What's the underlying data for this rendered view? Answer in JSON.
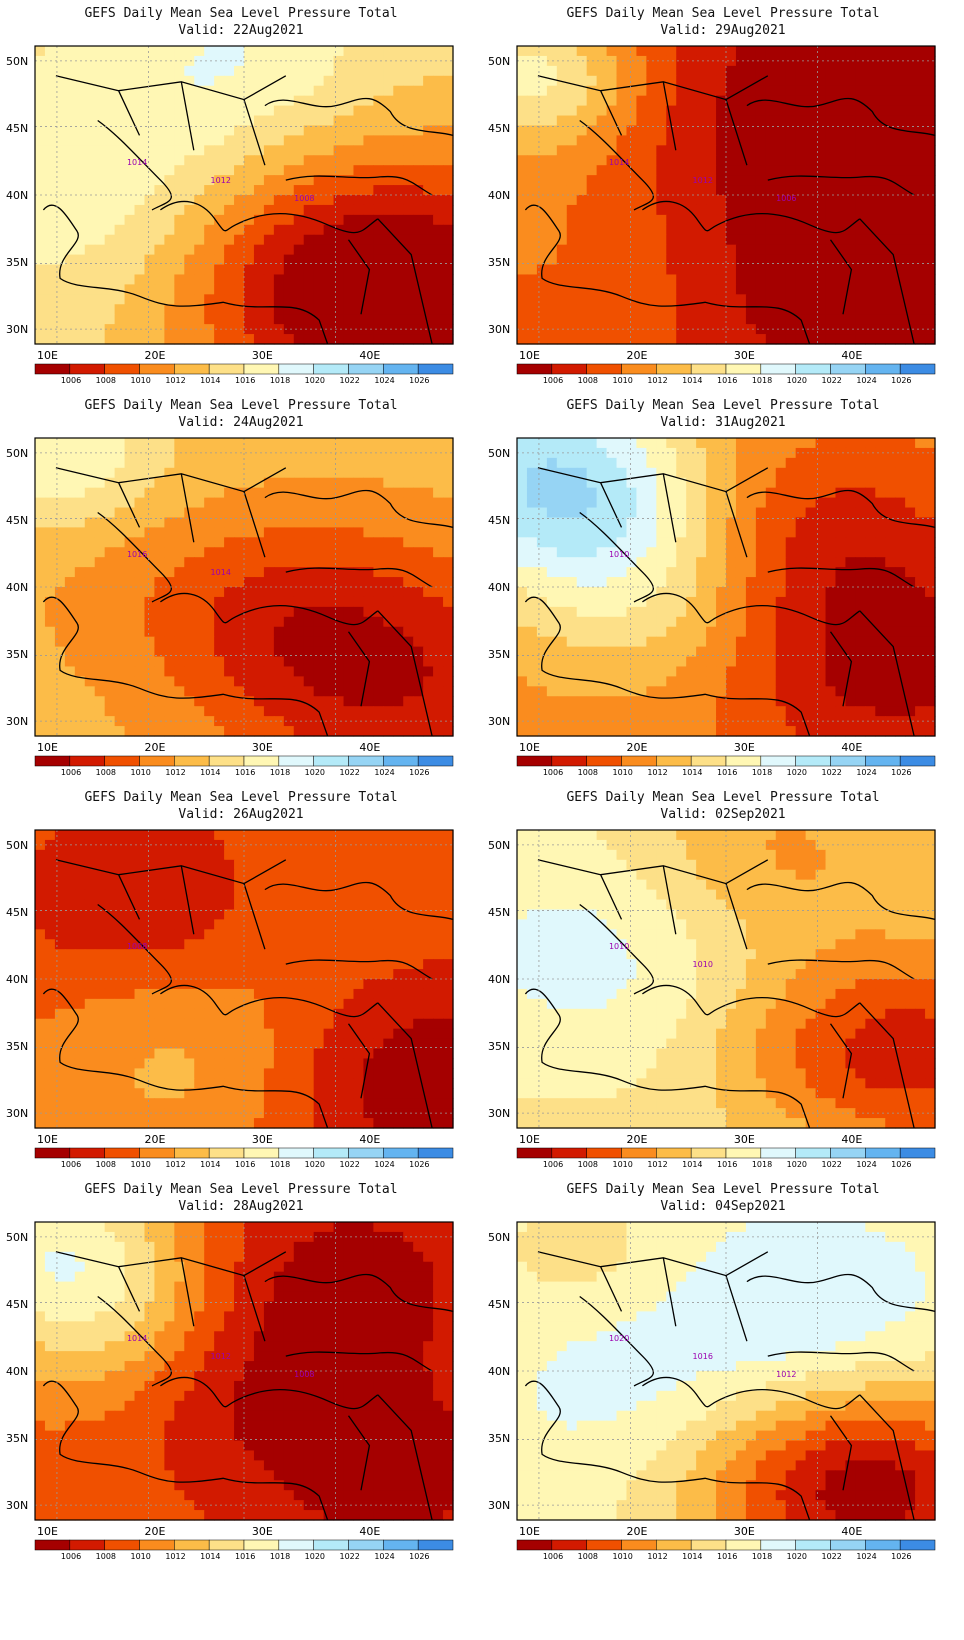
{
  "panels": [
    {
      "title": "GEFS Daily Mean Sea Level Pressure Total",
      "valid": "Valid: 22Aug2021",
      "labels": [
        "1014",
        "1012",
        "1008"
      ]
    },
    {
      "title": "GEFS Daily Mean Sea Level Pressure Total",
      "valid": "Valid: 29Aug2021",
      "labels": [
        "1014",
        "1012",
        "1006"
      ]
    },
    {
      "title": "GEFS Daily Mean Sea Level Pressure Total",
      "valid": "Valid: 24Aug2021",
      "labels": [
        "1016",
        "1014"
      ]
    },
    {
      "title": "GEFS Daily Mean Sea Level Pressure Total",
      "valid": "Valid: 31Aug2021",
      "labels": [
        "1010"
      ]
    },
    {
      "title": "GEFS Daily Mean Sea Level Pressure Total",
      "valid": "Valid: 26Aug2021",
      "labels": [
        "1008"
      ]
    },
    {
      "title": "GEFS Daily Mean Sea Level Pressure Total",
      "valid": "Valid: 02Sep2021",
      "labels": [
        "1010",
        "1010"
      ]
    },
    {
      "title": "GEFS Daily Mean Sea Level Pressure Total",
      "valid": "Valid: 28Aug2021",
      "labels": [
        "1014",
        "1012",
        "1008"
      ]
    },
    {
      "title": "GEFS Daily Mean Sea Level Pressure Total",
      "valid": "Valid: 04Sep2021",
      "labels": [
        "1020",
        "1016",
        "1012"
      ]
    }
  ],
  "lat_ticks": [
    "50N",
    "45N",
    "40N",
    "35N",
    "30N"
  ],
  "lon_ticks": [
    "10E",
    "20E",
    "30E",
    "40E"
  ],
  "colorbar": {
    "labels": [
      "1006",
      "1008",
      "1010",
      "1012",
      "1014",
      "1016",
      "1018",
      "1020",
      "1022",
      "1024",
      "1026"
    ],
    "colors": [
      "#a50000",
      "#d21a00",
      "#f05000",
      "#fa8c1e",
      "#fcbc48",
      "#fde088",
      "#fff7b4",
      "#e0f8fc",
      "#b4eaf8",
      "#96d4f4",
      "#64b4f0",
      "#3c8ce4",
      "#1460d0"
    ]
  }
}
